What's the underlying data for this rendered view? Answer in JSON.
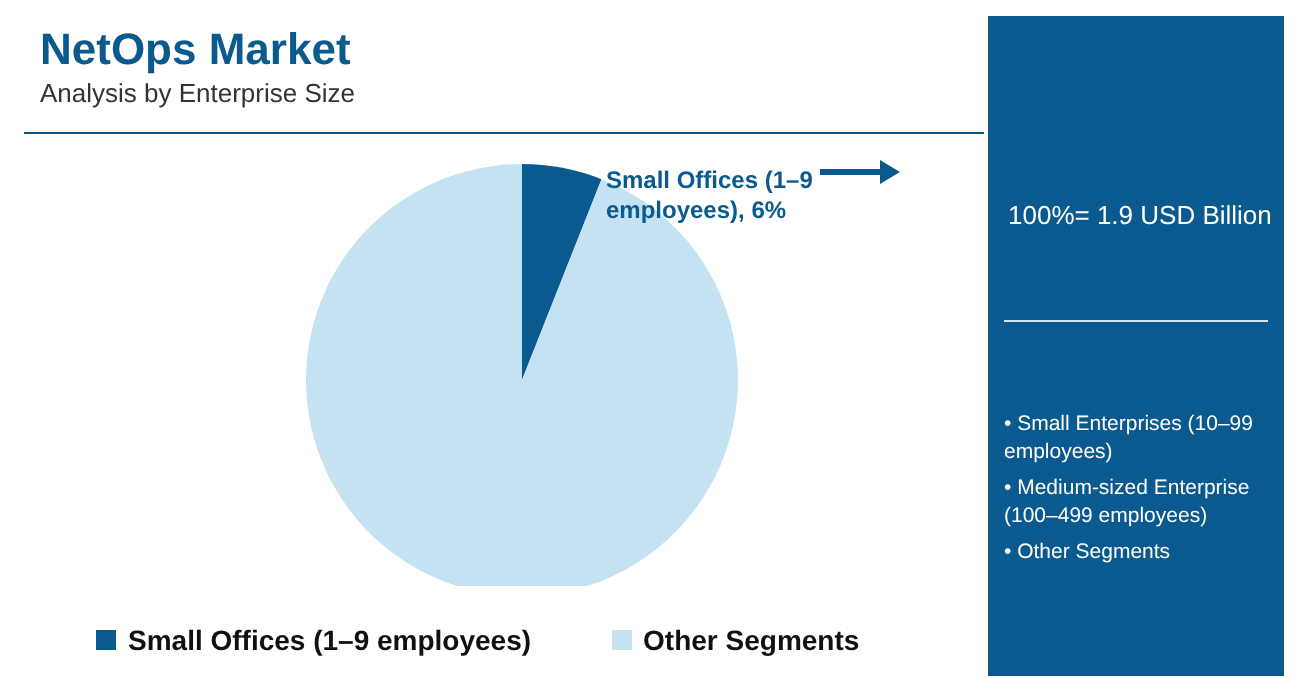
{
  "chart_data": {
    "type": "pie",
    "title": "NetOps Market",
    "subtitle": "Analysis by Enterprise Size",
    "categories": [
      "Small Offices (1–9 employees)",
      "Other Segments"
    ],
    "values": [
      6,
      94
    ],
    "colors": [
      "#0b5a8f",
      "#c5e2f2"
    ],
    "value_labels": [
      "Small Offices (1–9 employees), 6%",
      null
    ],
    "legend": "bottom",
    "annotations": [
      "100%= 1.9 USD Billion",
      "• Small Enterprises (10–99 employees)",
      "• Medium-sized Enterprise (100–499 employees)",
      "• Other Segments"
    ]
  }
}
